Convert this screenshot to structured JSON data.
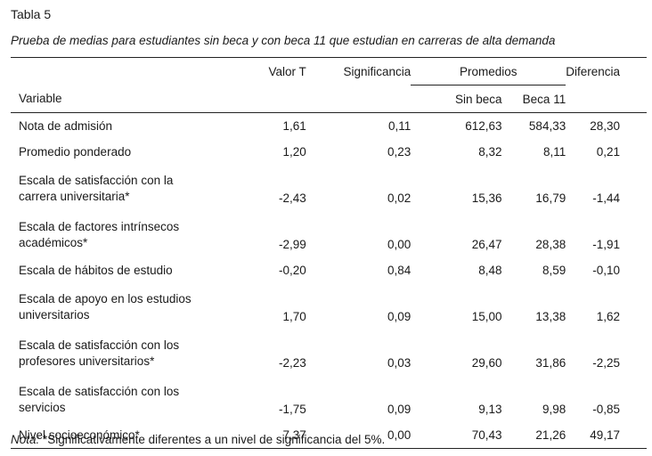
{
  "table_label": "Tabla 5",
  "caption": "Prueba de medias para estudiantes sin beca y con beca 11 que estudian en carreras de alta demanda",
  "headers": {
    "variable": "Variable",
    "valor_t": "Valor T",
    "significancia": "Significancia",
    "promedios": "Promedios",
    "sin_beca": "Sin beca",
    "beca_11": "Beca 11",
    "diferencia": "Diferencia"
  },
  "rows": [
    {
      "variable": [
        "Nota de admisión"
      ],
      "t": "1,61",
      "sig": "0,11",
      "sin_beca": "612,63",
      "beca11": "584,33",
      "dif": "28,30"
    },
    {
      "variable": [
        "Promedio ponderado"
      ],
      "t": "1,20",
      "sig": "0,23",
      "sin_beca": "8,32",
      "beca11": "8,11",
      "dif": "0,21"
    },
    {
      "variable": [
        "Escala de satisfacción con la",
        "carrera universitaria*"
      ],
      "t": "-2,43",
      "sig": "0,02",
      "sin_beca": "15,36",
      "beca11": "16,79",
      "dif": "-1,44"
    },
    {
      "variable": [
        "Escala de factores intrínsecos",
        "académicos*"
      ],
      "t": "-2,99",
      "sig": "0,00",
      "sin_beca": "26,47",
      "beca11": "28,38",
      "dif": "-1,91"
    },
    {
      "variable": [
        "Escala de hábitos de estudio"
      ],
      "t": "-0,20",
      "sig": "0,84",
      "sin_beca": "8,48",
      "beca11": "8,59",
      "dif": "-0,10"
    },
    {
      "variable": [
        "Escala de apoyo en los estudios",
        "universitarios"
      ],
      "t": "1,70",
      "sig": "0,09",
      "sin_beca": "15,00",
      "beca11": "13,38",
      "dif": "1,62"
    },
    {
      "variable": [
        "Escala de satisfacción con los",
        "profesores universitarios*"
      ],
      "t": "-2,23",
      "sig": "0,03",
      "sin_beca": "29,60",
      "beca11": "31,86",
      "dif": "-2,25"
    },
    {
      "variable": [
        "Escala de satisfacción con los",
        "servicios"
      ],
      "t": "-1,75",
      "sig": "0,09",
      "sin_beca": "9,13",
      "beca11": "9,98",
      "dif": "-0,85"
    },
    {
      "variable": [
        "Nivel socioeconómico*"
      ],
      "t": "7,37",
      "sig": "0,00",
      "sin_beca": "70,43",
      "beca11": "21,26",
      "dif": "49,17"
    }
  ],
  "note": {
    "label": "Nota:",
    "text": " *Significativamente diferentes a un nivel de significancia del 5%."
  }
}
